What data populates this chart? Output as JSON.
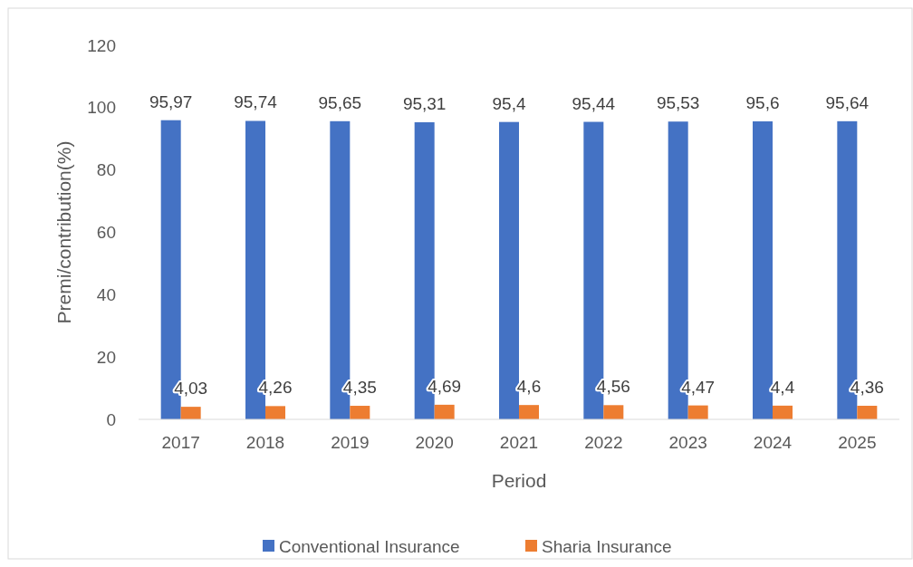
{
  "chart_data": {
    "type": "bar",
    "xlabel": "Period",
    "ylabel": "Premi/contribution(%)",
    "categories": [
      "2017",
      "2018",
      "2019",
      "2020",
      "2021",
      "2022",
      "2023",
      "2024",
      "2025"
    ],
    "series": [
      {
        "name": "Conventional Insurance",
        "color": "#4472c4",
        "values": [
          95.97,
          95.74,
          95.65,
          95.31,
          95.4,
          95.44,
          95.53,
          95.6,
          95.64
        ],
        "value_labels": [
          "95,97",
          "95,74",
          "95,65",
          "95,31",
          "95,4",
          "95,44",
          "95,53",
          "95,6",
          "95,64"
        ]
      },
      {
        "name": "Sharia Insurance",
        "color": "#ed7d31",
        "values": [
          4.03,
          4.26,
          4.35,
          4.69,
          4.6,
          4.56,
          4.47,
          4.4,
          4.36
        ],
        "value_labels": [
          "4,03",
          "4,26",
          "4,35",
          "4,69",
          "4,6",
          "4,56",
          "4,47",
          "4,4",
          "4,36"
        ]
      }
    ],
    "ylim": [
      0,
      120
    ],
    "yticks": [
      0,
      20,
      40,
      60,
      80,
      100,
      120
    ],
    "grid": false,
    "legend": "bottom"
  }
}
